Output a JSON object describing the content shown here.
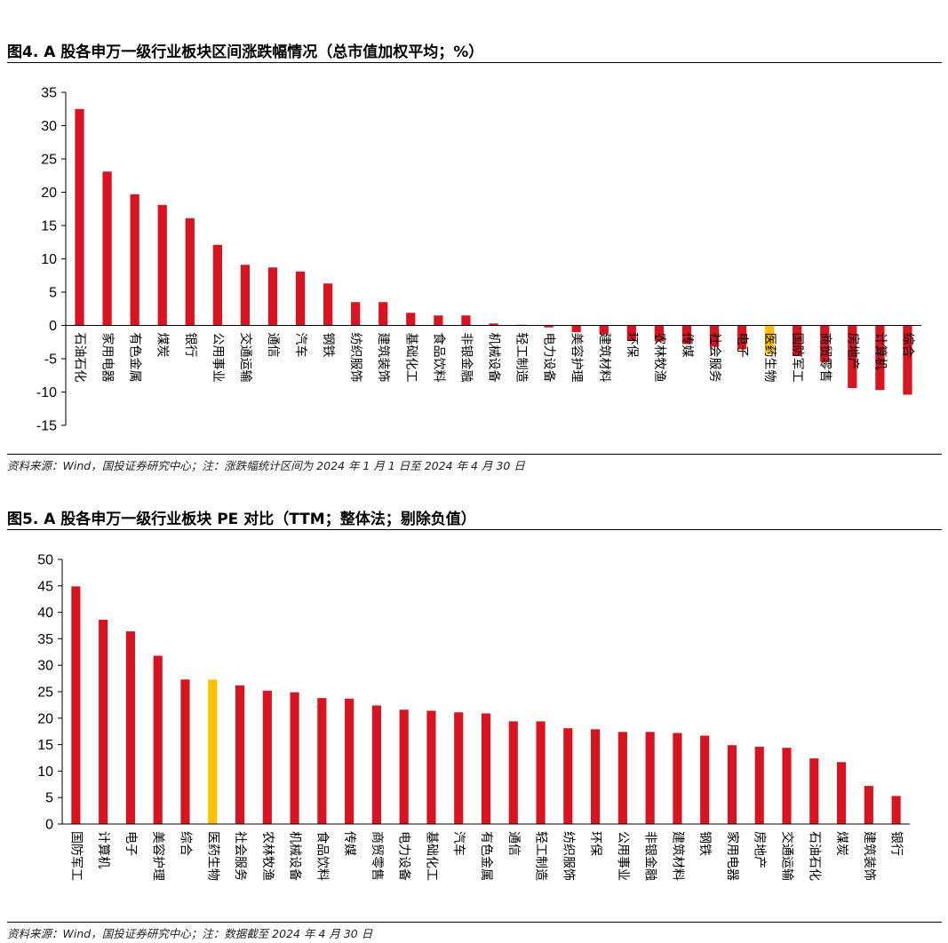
{
  "colors": {
    "bar": "#d7141f",
    "highlight": "#ffc000",
    "axis": "#000000"
  },
  "figures": [
    {
      "title": "图4. A 股各申万一级行业板块区间涨跌幅情况（总市值加权平均；%）",
      "source": "资料来源：Wind，国投证券研究中心；注：涨跌幅统计区间为 2024 年 1 月 1 日至 2024 年 4 月 30 日",
      "chart_data": {
        "type": "bar",
        "ylim": [
          -15,
          35
        ],
        "yticks": [
          -15,
          -10,
          -5,
          0,
          5,
          10,
          15,
          20,
          25,
          30,
          35
        ],
        "highlight": "医药生物",
        "categories": [
          "石油石化",
          "家用电器",
          "有色金属",
          "煤炭",
          "银行",
          "公用事业",
          "交通运输",
          "通信",
          "汽车",
          "钢铁",
          "纺织服饰",
          "建筑装饰",
          "基础化工",
          "食品饮料",
          "非银金融",
          "机械设备",
          "轻工制造",
          "电力设备",
          "美容护理",
          "建筑材料",
          "环保",
          "农林牧渔",
          "传媒",
          "社会服务",
          "电子",
          "医药生物",
          "国防军工",
          "商贸零售",
          "房地产",
          "计算机",
          "综合"
        ],
        "values": [
          32.5,
          23.1,
          19.7,
          18.1,
          16.1,
          12.1,
          9.1,
          8.7,
          8.1,
          6.3,
          3.5,
          3.5,
          1.9,
          1.5,
          1.5,
          0.3,
          0.1,
          -0.3,
          -1.0,
          -1.3,
          -2.2,
          -2.4,
          -2.8,
          -3.2,
          -3.6,
          -4.3,
          -4.6,
          -5.5,
          -9.4,
          -9.7,
          -10.4
        ]
      }
    },
    {
      "title": "图5. A 股各申万一级行业板块 PE 对比（TTM；整体法；剔除负值）",
      "source": "资料来源：Wind，国投证券研究中心；注：数据截至 2024 年 4 月 30 日",
      "chart_data": {
        "type": "bar",
        "ylim": [
          0,
          50
        ],
        "yticks": [
          0,
          5,
          10,
          15,
          20,
          25,
          30,
          35,
          40,
          45,
          50
        ],
        "highlight": "医药生物",
        "categories": [
          "国防军工",
          "计算机",
          "电子",
          "美容护理",
          "综合",
          "医药生物",
          "社会服务",
          "农林牧渔",
          "机械设备",
          "食品饮料",
          "传媒",
          "商贸零售",
          "电力设备",
          "基础化工",
          "汽车",
          "有色金属",
          "通信",
          "轻工制造",
          "纺织服饰",
          "环保",
          "公用事业",
          "非银金融",
          "建筑材料",
          "钢铁",
          "家用电器",
          "房地产",
          "交通运输",
          "石油石化",
          "煤炭",
          "建筑装饰",
          "银行"
        ],
        "values": [
          44.9,
          38.6,
          36.4,
          31.8,
          27.3,
          27.3,
          26.2,
          25.2,
          24.9,
          23.8,
          23.7,
          22.4,
          21.6,
          21.4,
          21.1,
          20.9,
          19.4,
          19.4,
          18.1,
          17.9,
          17.4,
          17.4,
          17.2,
          16.7,
          14.9,
          14.6,
          14.4,
          12.4,
          11.7,
          7.2,
          5.3
        ]
      }
    }
  ]
}
